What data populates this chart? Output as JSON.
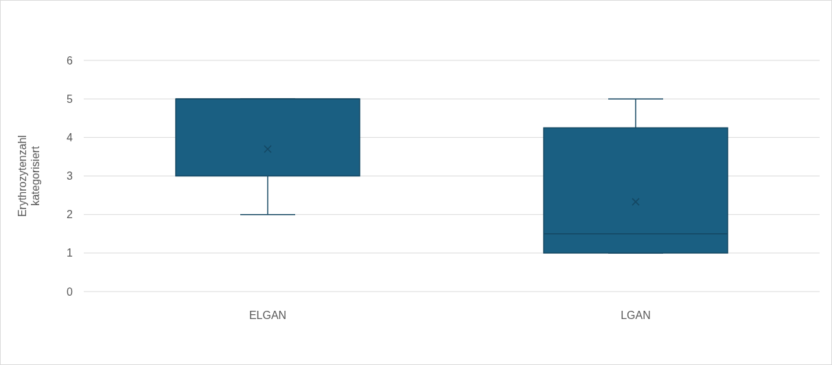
{
  "chart_data": {
    "type": "box",
    "ylabel": "Erythrozytenzahl kategorisiert",
    "categories": [
      "ELGAN",
      "LGAN"
    ],
    "boxes": [
      {
        "low": 2,
        "q1": 3,
        "median": 5,
        "q3": 5,
        "high": 5,
        "mean": 3.7
      },
      {
        "low": 1,
        "q1": 1,
        "median": 1.5,
        "q3": 4.25,
        "high": 5,
        "mean": 2.33
      }
    ],
    "color": "#1a5f82",
    "ylim": [
      0,
      6
    ],
    "yticks": [
      0,
      1,
      2,
      3,
      4,
      5,
      6
    ],
    "grid": "y"
  }
}
